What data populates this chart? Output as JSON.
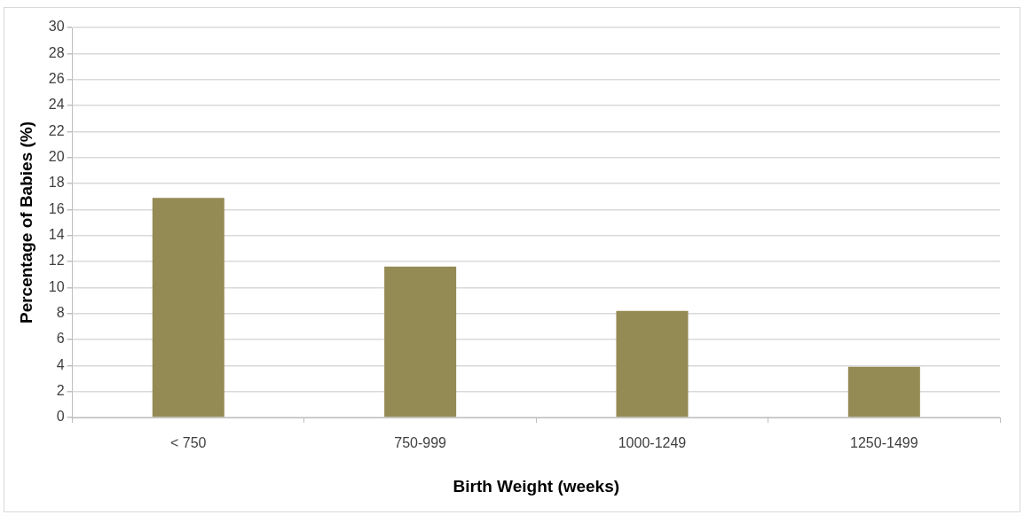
{
  "chart_data": {
    "type": "bar",
    "xlabel": "Birth Weight (weeks)",
    "ylabel": "Percentage of Babies (%)",
    "categories": [
      "< 750",
      "750-999",
      "1000-1249",
      "1250-1499"
    ],
    "values": [
      16.9,
      11.6,
      8.2,
      3.9
    ],
    "color": "#948a54",
    "ylim": [
      0,
      30
    ],
    "yticks": [
      0,
      2,
      4,
      6,
      8,
      10,
      12,
      14,
      16,
      18,
      20,
      22,
      24,
      26,
      28,
      30
    ],
    "grid": "y"
  }
}
